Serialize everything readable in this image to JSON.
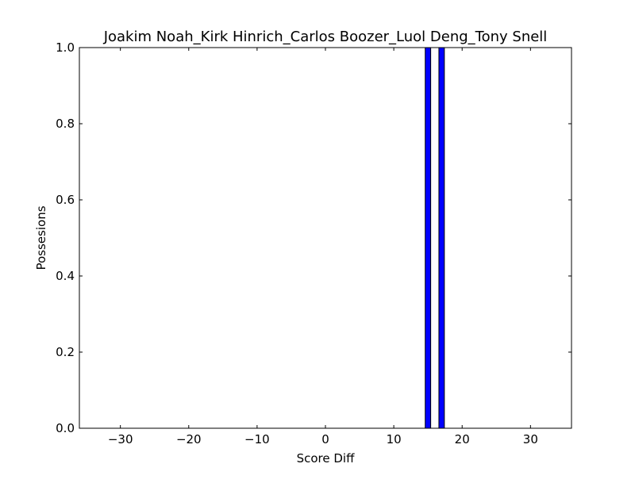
{
  "chart_data": {
    "type": "bar",
    "title": "Joakim Noah_Kirk Hinrich_Carlos Boozer_Luol Deng_Tony Snell",
    "xlabel": "Score Diff",
    "ylabel": "Possesions",
    "xlim": [
      -36,
      36
    ],
    "ylim": [
      0,
      1.0
    ],
    "xticks": [
      -30,
      -20,
      -10,
      0,
      10,
      20,
      30
    ],
    "xtick_labels": [
      "−30",
      "−20",
      "−10",
      "0",
      "10",
      "20",
      "30"
    ],
    "yticks": [
      0.0,
      0.2,
      0.4,
      0.6,
      0.8,
      1.0
    ],
    "ytick_labels": [
      "0.0",
      "0.2",
      "0.4",
      "0.6",
      "0.8",
      "1.0"
    ],
    "bar_width": 0.8,
    "bar_color": "#0000ff",
    "edge_color": "#000000",
    "x": [
      15,
      17
    ],
    "values": [
      1.0,
      1.0
    ],
    "grid": false
  }
}
